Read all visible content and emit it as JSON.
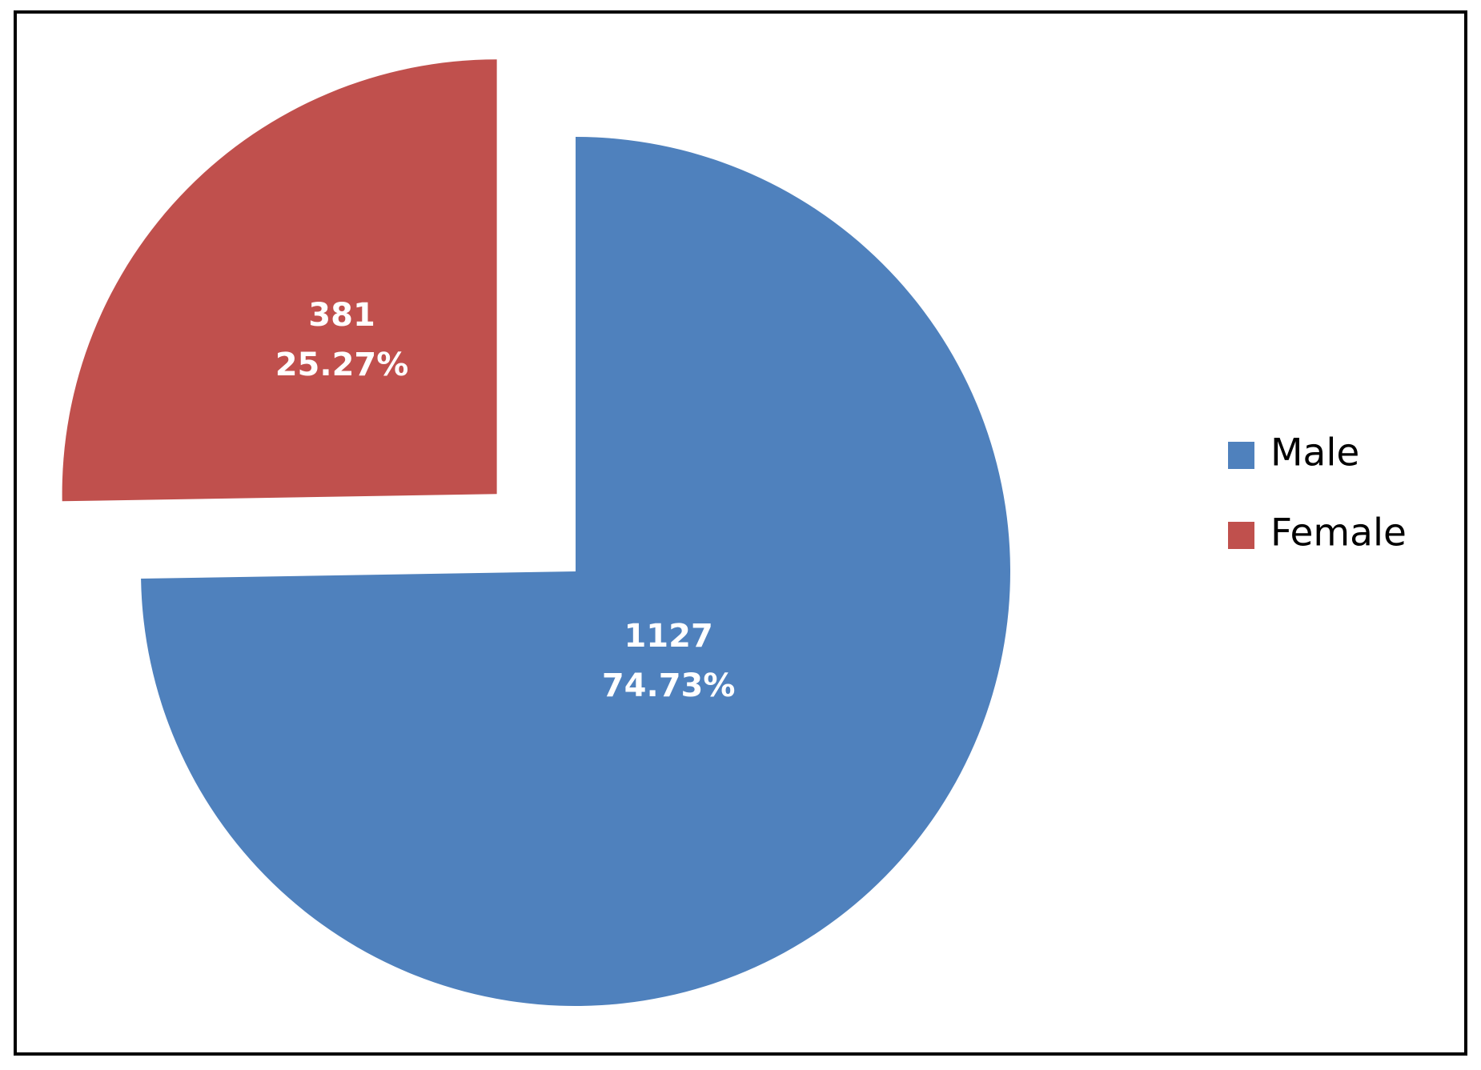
{
  "chart_data": {
    "type": "pie",
    "categories": [
      "Male",
      "Female"
    ],
    "values": [
      1127,
      381
    ],
    "percents": [
      74.73,
      25.27
    ],
    "percent_labels": [
      "74.73%",
      "25.27%"
    ],
    "colors": [
      "#4f81bd",
      "#c0504d"
    ],
    "exploded": [
      false,
      true
    ],
    "legend": "right"
  }
}
